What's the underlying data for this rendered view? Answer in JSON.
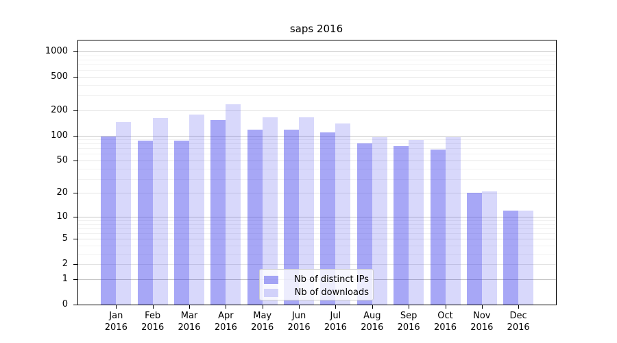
{
  "chart_data": {
    "type": "bar",
    "title": "saps 2016",
    "categories": [
      "Jan 2016",
      "Feb 2016",
      "Mar 2016",
      "Apr 2016",
      "May 2016",
      "Jun 2016",
      "Jul 2016",
      "Aug 2016",
      "Sep 2016",
      "Oct 2016",
      "Nov 2016",
      "Dec 2016"
    ],
    "series": [
      {
        "name": "Nb of distinct IPs",
        "color": "rgba(60,60,235,0.45)",
        "values": [
          98,
          86,
          86,
          154,
          117,
          117,
          108,
          80,
          74,
          68,
          20,
          12
        ]
      },
      {
        "name": "Nb of downloads",
        "color": "rgba(60,60,235,0.20)",
        "values": [
          144,
          163,
          177,
          235,
          165,
          165,
          139,
          96,
          89,
          95,
          21,
          12
        ]
      }
    ],
    "xlabel": "",
    "ylabel": "",
    "yscale": "log1p",
    "ylim": [
      0,
      1390
    ],
    "yticks": [
      0,
      1,
      2,
      5,
      10,
      20,
      50,
      100,
      200,
      500,
      1000
    ],
    "minor_yticks": [
      3,
      4,
      6,
      7,
      8,
      9,
      30,
      40,
      60,
      70,
      80,
      90,
      300,
      400,
      600,
      700,
      800,
      900
    ],
    "grid": true,
    "legend_position": "lower center",
    "legend_labels": [
      "Nb of distinct IPs",
      "Nb of downloads"
    ]
  },
  "colors": {
    "major_grid": "#c6c6c6",
    "mid_grid": "#e3e3e3",
    "minor_grid": "#f1f1f1",
    "spine": "#000000",
    "background": "#ffffff",
    "legend_border": "#cccccc"
  }
}
